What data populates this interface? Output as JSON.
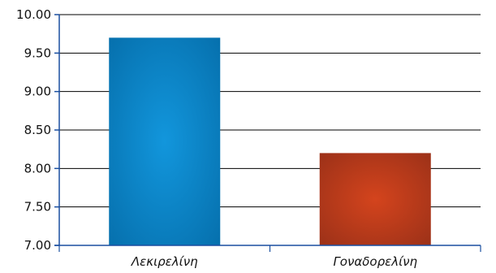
{
  "chart_data": {
    "type": "bar",
    "categories": [
      "Λεκιρελίνη",
      "Γοναδορελίνη"
    ],
    "values": [
      9.7,
      8.2
    ],
    "colors": [
      "#0a7dbd",
      "#c0391b"
    ],
    "title": "",
    "xlabel": "",
    "ylabel": "",
    "ylim": [
      7.0,
      10.0
    ],
    "yticks": [
      7.0,
      7.5,
      8.0,
      8.5,
      9.0,
      9.5,
      10.0
    ],
    "ytick_labels": [
      "7.00",
      "7.50",
      "8.00",
      "8.50",
      "9.00",
      "9.50",
      "10.00"
    ],
    "grid": true,
    "legend": "none"
  }
}
